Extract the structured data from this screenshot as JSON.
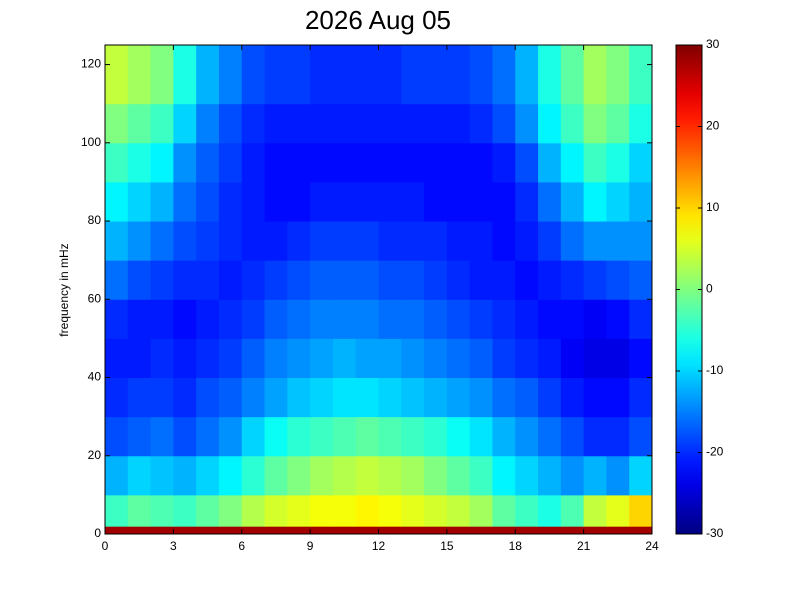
{
  "chart_data": {
    "type": "heatmap",
    "title": "2026 Aug 05",
    "y_label": "frequency in mHz",
    "colormap": "jet",
    "x_edges": [
      0,
      1,
      2,
      3,
      4,
      5,
      6,
      7,
      8,
      9,
      10,
      11,
      12,
      13,
      14,
      15,
      16,
      17,
      18,
      19,
      20,
      21,
      22,
      23,
      24
    ],
    "y_edges": [
      0,
      2,
      10,
      20,
      30,
      40,
      50,
      60,
      70,
      80,
      90,
      100,
      110,
      125
    ],
    "values": [
      [
        28,
        28,
        28,
        28,
        28,
        28,
        28,
        28,
        28,
        28,
        28,
        28,
        28,
        28,
        28,
        28,
        28,
        28,
        28,
        28,
        28,
        28,
        28,
        28
      ],
      [
        -4,
        -2,
        -3,
        -4,
        -2,
        0,
        3,
        5,
        6,
        7,
        7,
        8,
        7,
        6,
        5,
        4,
        2,
        -2,
        -4,
        -6,
        -3,
        4,
        6,
        10
      ],
      [
        -12,
        -10,
        -11,
        -12,
        -10,
        -8,
        -5,
        -2,
        0,
        2,
        3,
        4,
        3,
        2,
        0,
        -2,
        -4,
        -8,
        -10,
        -12,
        -14,
        -12,
        -14,
        -10
      ],
      [
        -18,
        -17,
        -16,
        -18,
        -16,
        -14,
        -10,
        -7,
        -5,
        -4,
        -3,
        -2,
        -3,
        -4,
        -5,
        -7,
        -9,
        -12,
        -14,
        -16,
        -18,
        -20,
        -20,
        -18
      ],
      [
        -20,
        -19,
        -19,
        -20,
        -18,
        -17,
        -15,
        -13,
        -11,
        -10,
        -9,
        -9,
        -10,
        -11,
        -12,
        -13,
        -14,
        -16,
        -17,
        -19,
        -21,
        -22,
        -22,
        -20
      ],
      [
        -21,
        -21,
        -20,
        -21,
        -20,
        -19,
        -17,
        -15,
        -14,
        -13,
        -12,
        -13,
        -13,
        -14,
        -15,
        -16,
        -17,
        -19,
        -20,
        -21,
        -23,
        -24,
        -24,
        -22
      ],
      [
        -20,
        -21,
        -21,
        -22,
        -21,
        -20,
        -19,
        -17,
        -16,
        -15,
        -15,
        -15,
        -16,
        -16,
        -17,
        -18,
        -19,
        -20,
        -21,
        -22,
        -22,
        -23,
        -22,
        -20
      ],
      [
        -16,
        -18,
        -19,
        -20,
        -20,
        -21,
        -20,
        -19,
        -18,
        -17,
        -17,
        -17,
        -18,
        -18,
        -19,
        -20,
        -21,
        -21,
        -22,
        -21,
        -20,
        -19,
        -18,
        -17
      ],
      [
        -12,
        -14,
        -16,
        -18,
        -19,
        -20,
        -21,
        -21,
        -20,
        -19,
        -19,
        -19,
        -20,
        -20,
        -20,
        -21,
        -21,
        -22,
        -21,
        -19,
        -16,
        -14,
        -14,
        -14
      ],
      [
        -8,
        -10,
        -12,
        -16,
        -18,
        -20,
        -21,
        -22,
        -22,
        -21,
        -21,
        -21,
        -21,
        -21,
        -22,
        -22,
        -22,
        -22,
        -20,
        -16,
        -12,
        -8,
        -10,
        -12
      ],
      [
        -4,
        -6,
        -8,
        -14,
        -17,
        -19,
        -21,
        -22,
        -22,
        -22,
        -22,
        -22,
        -22,
        -22,
        -22,
        -22,
        -22,
        -21,
        -18,
        -12,
        -8,
        -4,
        -6,
        -10
      ],
      [
        0,
        -2,
        -4,
        -10,
        -15,
        -18,
        -20,
        -21,
        -21,
        -21,
        -21,
        -21,
        -21,
        -21,
        -21,
        -21,
        -20,
        -18,
        -14,
        -8,
        -4,
        0,
        -2,
        -6
      ],
      [
        4,
        2,
        0,
        -6,
        -12,
        -15,
        -18,
        -19,
        -19,
        -20,
        -20,
        -20,
        -20,
        -19,
        -19,
        -19,
        -18,
        -16,
        -12,
        -6,
        -2,
        2,
        0,
        -4
      ]
    ],
    "xlim": [
      0,
      24
    ],
    "xticks": [
      0,
      3,
      6,
      9,
      12,
      15,
      18,
      21,
      24
    ],
    "ylim": [
      0,
      125
    ],
    "yticks": [
      0,
      20,
      40,
      60,
      80,
      100,
      120
    ],
    "clim": [
      -30,
      30
    ],
    "cticks": [
      -30,
      -20,
      -10,
      0,
      10,
      20,
      30
    ]
  }
}
